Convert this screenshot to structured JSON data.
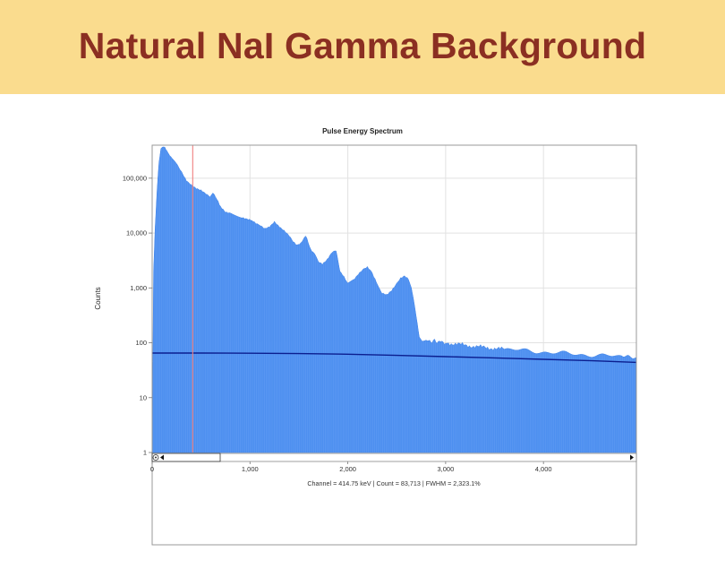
{
  "slide": {
    "title": "Natural NaI Gamma Background"
  },
  "chart_data": {
    "type": "area",
    "title": "Pulse Energy Spectrum",
    "xlabel": "",
    "ylabel": "Counts",
    "xlim": [
      0,
      4950
    ],
    "ylim": [
      1,
      400000
    ],
    "y_scale": "log",
    "grid": true,
    "x_ticks": [
      0,
      1000,
      2000,
      3000,
      4000
    ],
    "x_tick_labels": [
      "0",
      "1,000",
      "2,000",
      "3,000",
      "4,000"
    ],
    "y_ticks": [
      1,
      10,
      100,
      1000,
      10000,
      100000
    ],
    "y_tick_labels": [
      "1",
      "10",
      "100",
      "1,000",
      "10,000",
      "100,000"
    ],
    "series": [
      {
        "fill": "#4d8ff0",
        "x": [
          0,
          15,
          30,
          50,
          70,
          90,
          110,
          130,
          150,
          165,
          180,
          200,
          230,
          260,
          300,
          350,
          400,
          450,
          500,
          550,
          590,
          620,
          660,
          700,
          750,
          800,
          860,
          920,
          970,
          1020,
          1060,
          1100,
          1150,
          1200,
          1250,
          1300,
          1350,
          1400,
          1440,
          1480,
          1520,
          1570,
          1620,
          1670,
          1700,
          1740,
          1790,
          1840,
          1880,
          1920,
          1960,
          2000,
          2060,
          2110,
          2160,
          2200,
          2240,
          2290,
          2350,
          2400,
          2450,
          2500,
          2540,
          2580,
          2620,
          2650,
          2680,
          2710,
          2730,
          2760,
          2800,
          2850,
          2900,
          2950,
          3000,
          3100,
          3200,
          3300,
          3400,
          3500,
          3600,
          3800,
          4000,
          4200,
          4400,
          4600,
          4800,
          4950
        ],
        "y": [
          1,
          2000,
          12000,
          60000,
          200000,
          340000,
          380000,
          360000,
          320000,
          290000,
          260000,
          230000,
          200000,
          170000,
          130000,
          90000,
          75000,
          65000,
          60000,
          52000,
          46000,
          55000,
          42000,
          30000,
          24000,
          23000,
          21000,
          19000,
          18000,
          17000,
          15000,
          14000,
          12000,
          13000,
          16000,
          13000,
          11000,
          9000,
          7000,
          6000,
          6500,
          9000,
          5000,
          4000,
          3000,
          2700,
          3300,
          4500,
          4800,
          2000,
          1600,
          1200,
          1400,
          1800,
          2200,
          2400,
          2000,
          1300,
          800,
          750,
          900,
          1200,
          1500,
          1650,
          1450,
          1000,
          500,
          220,
          130,
          110,
          108,
          107,
          106,
          104,
          101,
          95,
          90,
          86,
          82,
          79,
          76,
          72,
          68,
          64,
          61,
          58,
          56,
          54
        ]
      },
      {
        "color": "#0b1e8f",
        "x": [
          0,
          500,
          1000,
          1500,
          2000,
          2500,
          3000,
          3500,
          4000,
          4500,
          4950
        ],
        "y": [
          65,
          65,
          64.5,
          63.5,
          62,
          59,
          56,
          53,
          50,
          47,
          44
        ]
      }
    ],
    "marker": {
      "x": 414.75,
      "color": "#f08080"
    },
    "status_text": "Channel = 414.75 keV | Count = 83,713 | FWHM = 2,323.1%"
  }
}
